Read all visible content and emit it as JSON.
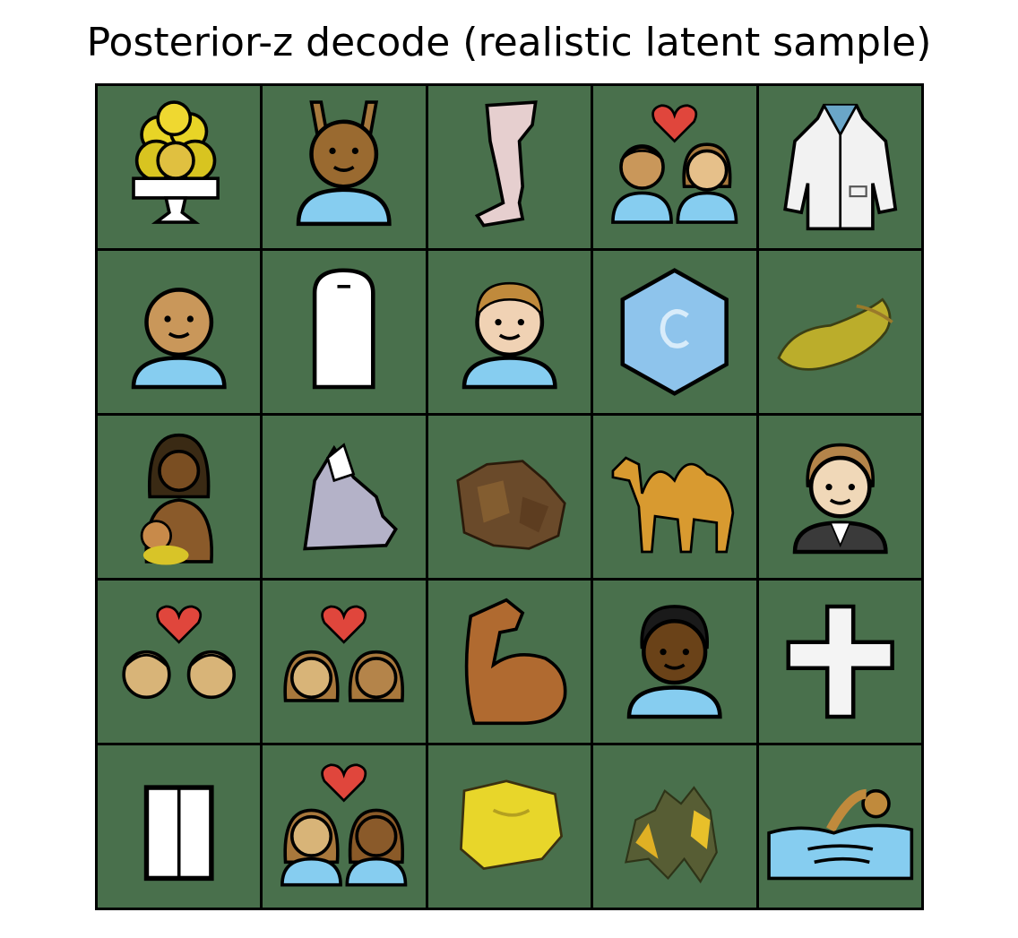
{
  "title": "Posterior-z decode (realistic latent sample)",
  "grid": {
    "rows": 5,
    "cols": 5,
    "cells": [
      "ice-cream-sundae",
      "person-with-raised-arms",
      "leg",
      "couple-with-heart",
      "lab-coat",
      "person-bust",
      "white-tombstone-shape",
      "person-bust-light",
      "blue-hexagon",
      "yellow-leaf-blob",
      "woman-holding-baby",
      "grey-rock-blob",
      "brown-blob",
      "camel",
      "man-in-suit",
      "couple-with-heart-heads",
      "couple-with-heart-women",
      "flexed-biceps",
      "person-dark-skin",
      "white-cross",
      "white-door",
      "couple-with-heart-women-busts",
      "yellow-blob",
      "yellow-splotch",
      "person-swimming"
    ]
  },
  "colors": {
    "tile_bg": "#49704c",
    "grid_border": "#000000",
    "skin": "#c9975a",
    "shirt": "#86cdf0",
    "heart": "#e0463c"
  }
}
